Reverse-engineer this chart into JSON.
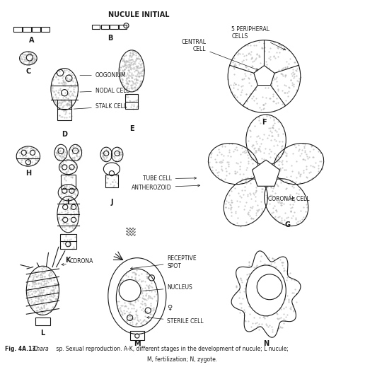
{
  "title": "NUCULE INITIAL",
  "caption_fig": "Fig. 4A.13.",
  "caption_italic": "Chara",
  "caption_text": " sp. Sexual reproduction. A-K, different stages in the development of nucule; L nucule;\nM, fertilization; N, zygote.",
  "bg_color": "#ffffff",
  "line_color": "#1a1a1a",
  "stipple_color": "#aaaaaa",
  "label_fontsize": 6.5,
  "title_fontsize": 7
}
